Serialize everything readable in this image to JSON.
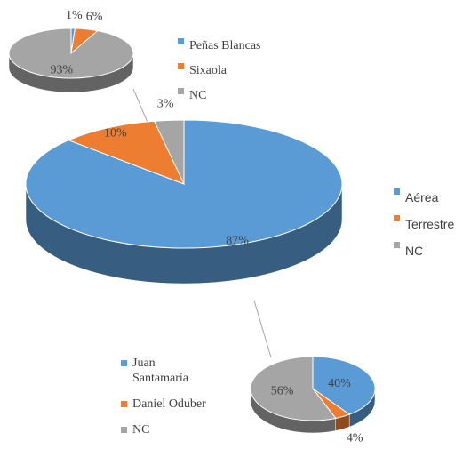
{
  "chart_data": [
    {
      "type": "pie",
      "categories": [
        "Aérea",
        "Terrestre",
        "NC"
      ],
      "values": [
        87,
        10,
        3
      ],
      "value_labels": [
        "87%",
        "10%",
        "3%"
      ],
      "colors": [
        "#5b9bd5",
        "#ed7d31",
        "#a5a5a5"
      ]
    },
    {
      "type": "pie",
      "categories": [
        "Peñas Blancas",
        "Sixaola",
        "NC"
      ],
      "values": [
        1,
        6,
        93
      ],
      "value_labels": [
        "1%",
        "6%",
        "93%"
      ],
      "colors": [
        "#5b9bd5",
        "#ed7d31",
        "#a5a5a5"
      ]
    },
    {
      "type": "pie",
      "categories": [
        "Juan Santamaría",
        "Daniel Oduber",
        "NC"
      ],
      "values": [
        40,
        4,
        56
      ],
      "value_labels": [
        "40%",
        "4%",
        "56%"
      ],
      "colors": [
        "#5b9bd5",
        "#ed7d31",
        "#a5a5a5"
      ]
    }
  ]
}
